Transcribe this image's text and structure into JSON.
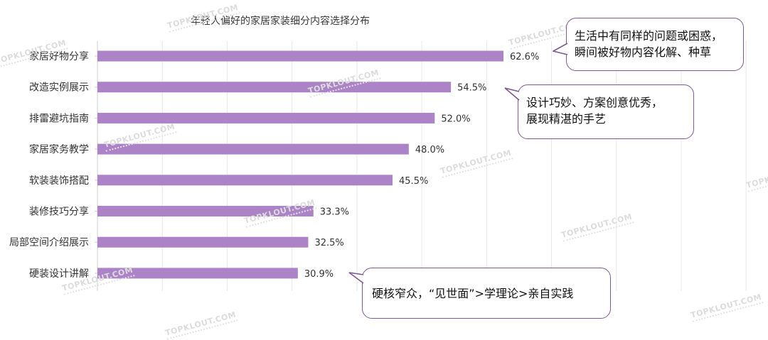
{
  "chart_data": {
    "type": "bar",
    "orientation": "horizontal",
    "title": "年轻人偏好的家居家装细分内容选择分布",
    "categories": [
      "家居好物分享",
      "改造实例展示",
      "排雷避坑指南",
      "家居家务教学",
      "软装装饰搭配",
      "装修技巧分享",
      "局部空间介绍展示",
      "硬装设计讲解"
    ],
    "values": [
      62.6,
      54.5,
      52.0,
      48.0,
      45.5,
      33.3,
      32.5,
      30.9
    ],
    "value_labels": [
      "62.6%",
      "54.5%",
      "52.0%",
      "48.0%",
      "45.5%",
      "33.3%",
      "32.5%",
      "30.9%"
    ],
    "xlim": [
      0,
      100
    ],
    "grid": true,
    "bar_color": "#ad83c7"
  },
  "callouts": [
    {
      "lines": [
        "生活中有同样的问题或困惑，",
        "瞬间被好物内容化解、种草"
      ]
    },
    {
      "lines": [
        "设计巧妙、方案创意优秀，",
        "展现精湛的手艺"
      ]
    },
    {
      "lines": [
        "硬核窄众，“见世面”>学理论>亲自实践"
      ]
    }
  ],
  "watermark": "TOPKLOUT.COM",
  "colors": {
    "callout_border": "#7d5a90",
    "grid": "#e8e8e8",
    "axis": "#cfcfcf"
  }
}
